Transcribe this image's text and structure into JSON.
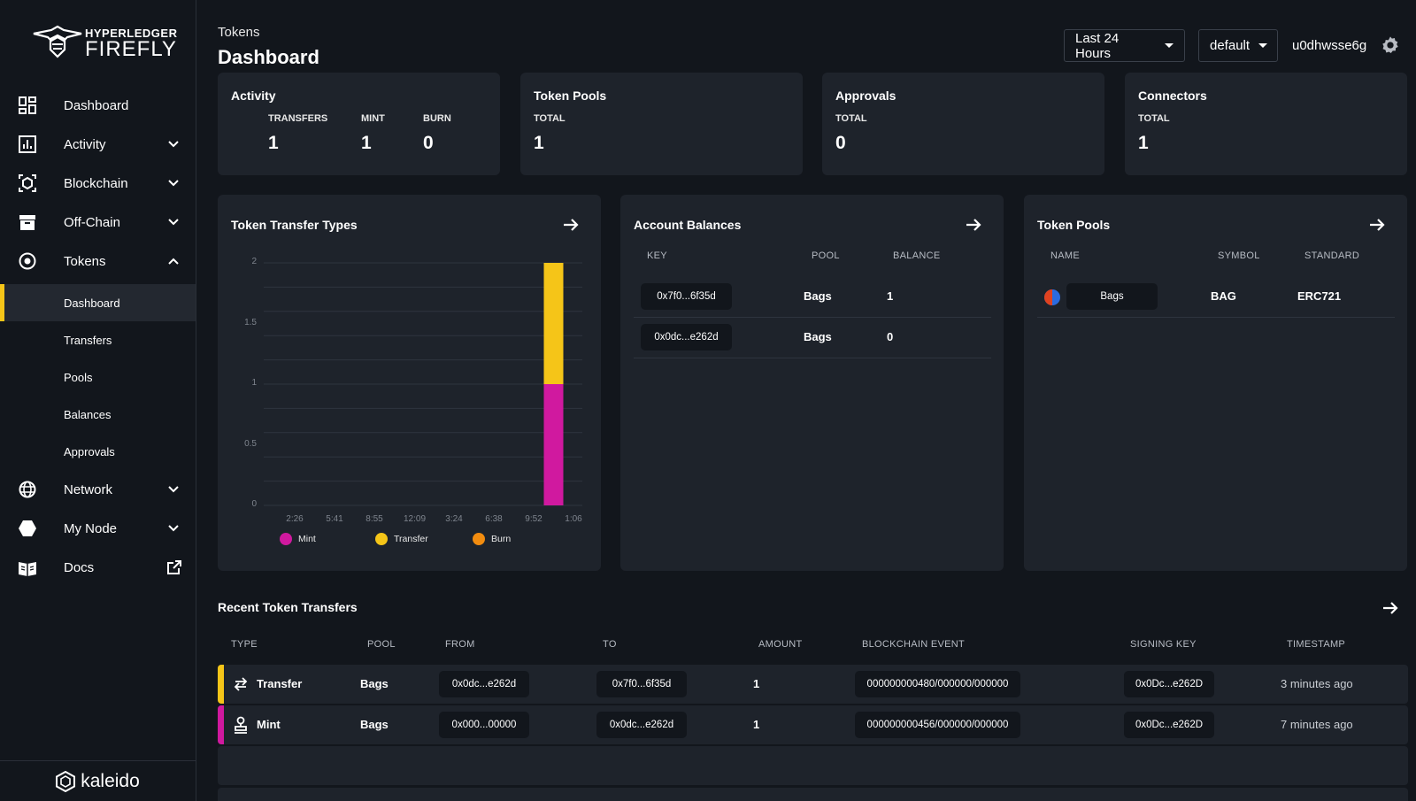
{
  "app": {
    "logo_top": "HYPERLEDGER",
    "logo_bottom": "FIREFLY",
    "footer_brand": "kaleido"
  },
  "sidebar": {
    "items": [
      {
        "label": "Dashboard",
        "icon": "dashboard-icon"
      },
      {
        "label": "Activity",
        "icon": "activity-icon"
      },
      {
        "label": "Blockchain",
        "icon": "blockchain-icon"
      },
      {
        "label": "Off-Chain",
        "icon": "archive-icon"
      },
      {
        "label": "Tokens",
        "icon": "tokens-icon"
      },
      {
        "label": "Network",
        "icon": "globe-icon"
      },
      {
        "label": "My Node",
        "icon": "hexagon-icon"
      },
      {
        "label": "Docs",
        "icon": "book-icon"
      }
    ],
    "token_subitems": [
      "Dashboard",
      "Transfers",
      "Pools",
      "Balances",
      "Approvals"
    ]
  },
  "header": {
    "breadcrumb": "Tokens",
    "title": "Dashboard",
    "time_range": "Last 24 Hours",
    "namespace": "default",
    "user": "u0dhwsse6g"
  },
  "summary": {
    "activity": {
      "title": "Activity",
      "transfers_label": "TRANSFERS",
      "transfers": "1",
      "mint_label": "MINT",
      "mint": "1",
      "burn_label": "BURN",
      "burn": "0"
    },
    "pools": {
      "title": "Token Pools",
      "label": "TOTAL",
      "value": "1"
    },
    "approvals": {
      "title": "Approvals",
      "label": "TOTAL",
      "value": "0"
    },
    "connectors": {
      "title": "Connectors",
      "label": "TOTAL",
      "value": "1"
    }
  },
  "transfer_types": {
    "title": "Token Transfer Types",
    "legend": [
      {
        "name": "Mint",
        "color": "#d0199f"
      },
      {
        "name": "Transfer",
        "color": "#f5c518"
      },
      {
        "name": "Burn",
        "color": "#f28c0f"
      }
    ]
  },
  "chart_data": {
    "type": "bar",
    "stacked": true,
    "title": "Token Transfer Types",
    "categories": [
      "2:26",
      "5:41",
      "8:55",
      "12:09",
      "3:24",
      "6:38",
      "9:52",
      "1:06"
    ],
    "ylim": [
      0,
      2
    ],
    "yticks": [
      "2",
      "1.5",
      "1",
      "0.5",
      "0"
    ],
    "grid": true,
    "legend_position": "bottom",
    "bar_at": "between 9:52 and 1:06",
    "series": [
      {
        "name": "Mint",
        "color": "#d0199f",
        "bar_value": 1
      },
      {
        "name": "Transfer",
        "color": "#f5c518",
        "bar_value": 1
      },
      {
        "name": "Burn",
        "color": "#f28c0f",
        "bar_value": 0
      }
    ]
  },
  "balances": {
    "title": "Account Balances",
    "columns": [
      "KEY",
      "POOL",
      "BALANCE"
    ],
    "rows": [
      {
        "key": "0x7f0...6f35d",
        "pool": "Bags",
        "balance": "1"
      },
      {
        "key": "0x0dc...e262d",
        "pool": "Bags",
        "balance": "0"
      }
    ]
  },
  "pools_table": {
    "title": "Token Pools",
    "columns": [
      "NAME",
      "SYMBOL",
      "STANDARD"
    ],
    "rows": [
      {
        "name": "Bags",
        "symbol": "BAG",
        "standard": "ERC721"
      }
    ]
  },
  "recent": {
    "title": "Recent Token Transfers",
    "columns": [
      "TYPE",
      "POOL",
      "FROM",
      "TO",
      "AMOUNT",
      "BLOCKCHAIN EVENT",
      "SIGNING KEY",
      "TIMESTAMP"
    ],
    "rows": [
      {
        "type": "Transfer",
        "type_color": "#f5c518",
        "icon": "transfer-arrows-icon",
        "pool": "Bags",
        "from": "0x0dc...e262d",
        "to": "0x7f0...6f35d",
        "amount": "1",
        "event": "000000000480/000000/000000",
        "signing_key": "0x0Dc...e262D",
        "timestamp": "3 minutes ago"
      },
      {
        "type": "Mint",
        "type_color": "#d0199f",
        "icon": "mint-stamp-icon",
        "pool": "Bags",
        "from": "0x000...00000",
        "to": "0x0dc...e262d",
        "amount": "1",
        "event": "000000000456/000000/000000",
        "signing_key": "0x0Dc...e262D",
        "timestamp": "7 minutes ago"
      }
    ]
  }
}
